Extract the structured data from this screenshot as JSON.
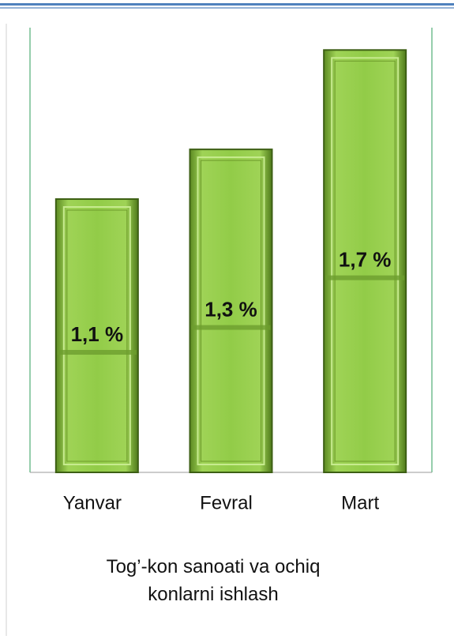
{
  "chart_data": {
    "type": "bar",
    "title": "Tog’-kon sanoati va ochiq konlarni ishlash",
    "categories": [
      "Yanvar",
      "Fevral",
      "Mart"
    ],
    "values": [
      1.1,
      1.3,
      1.7
    ],
    "value_labels": [
      "1,1 %",
      "1,3 %",
      "1,7 %"
    ],
    "color": "#8cc63f",
    "ylim": [
      0,
      1.79
    ]
  }
}
